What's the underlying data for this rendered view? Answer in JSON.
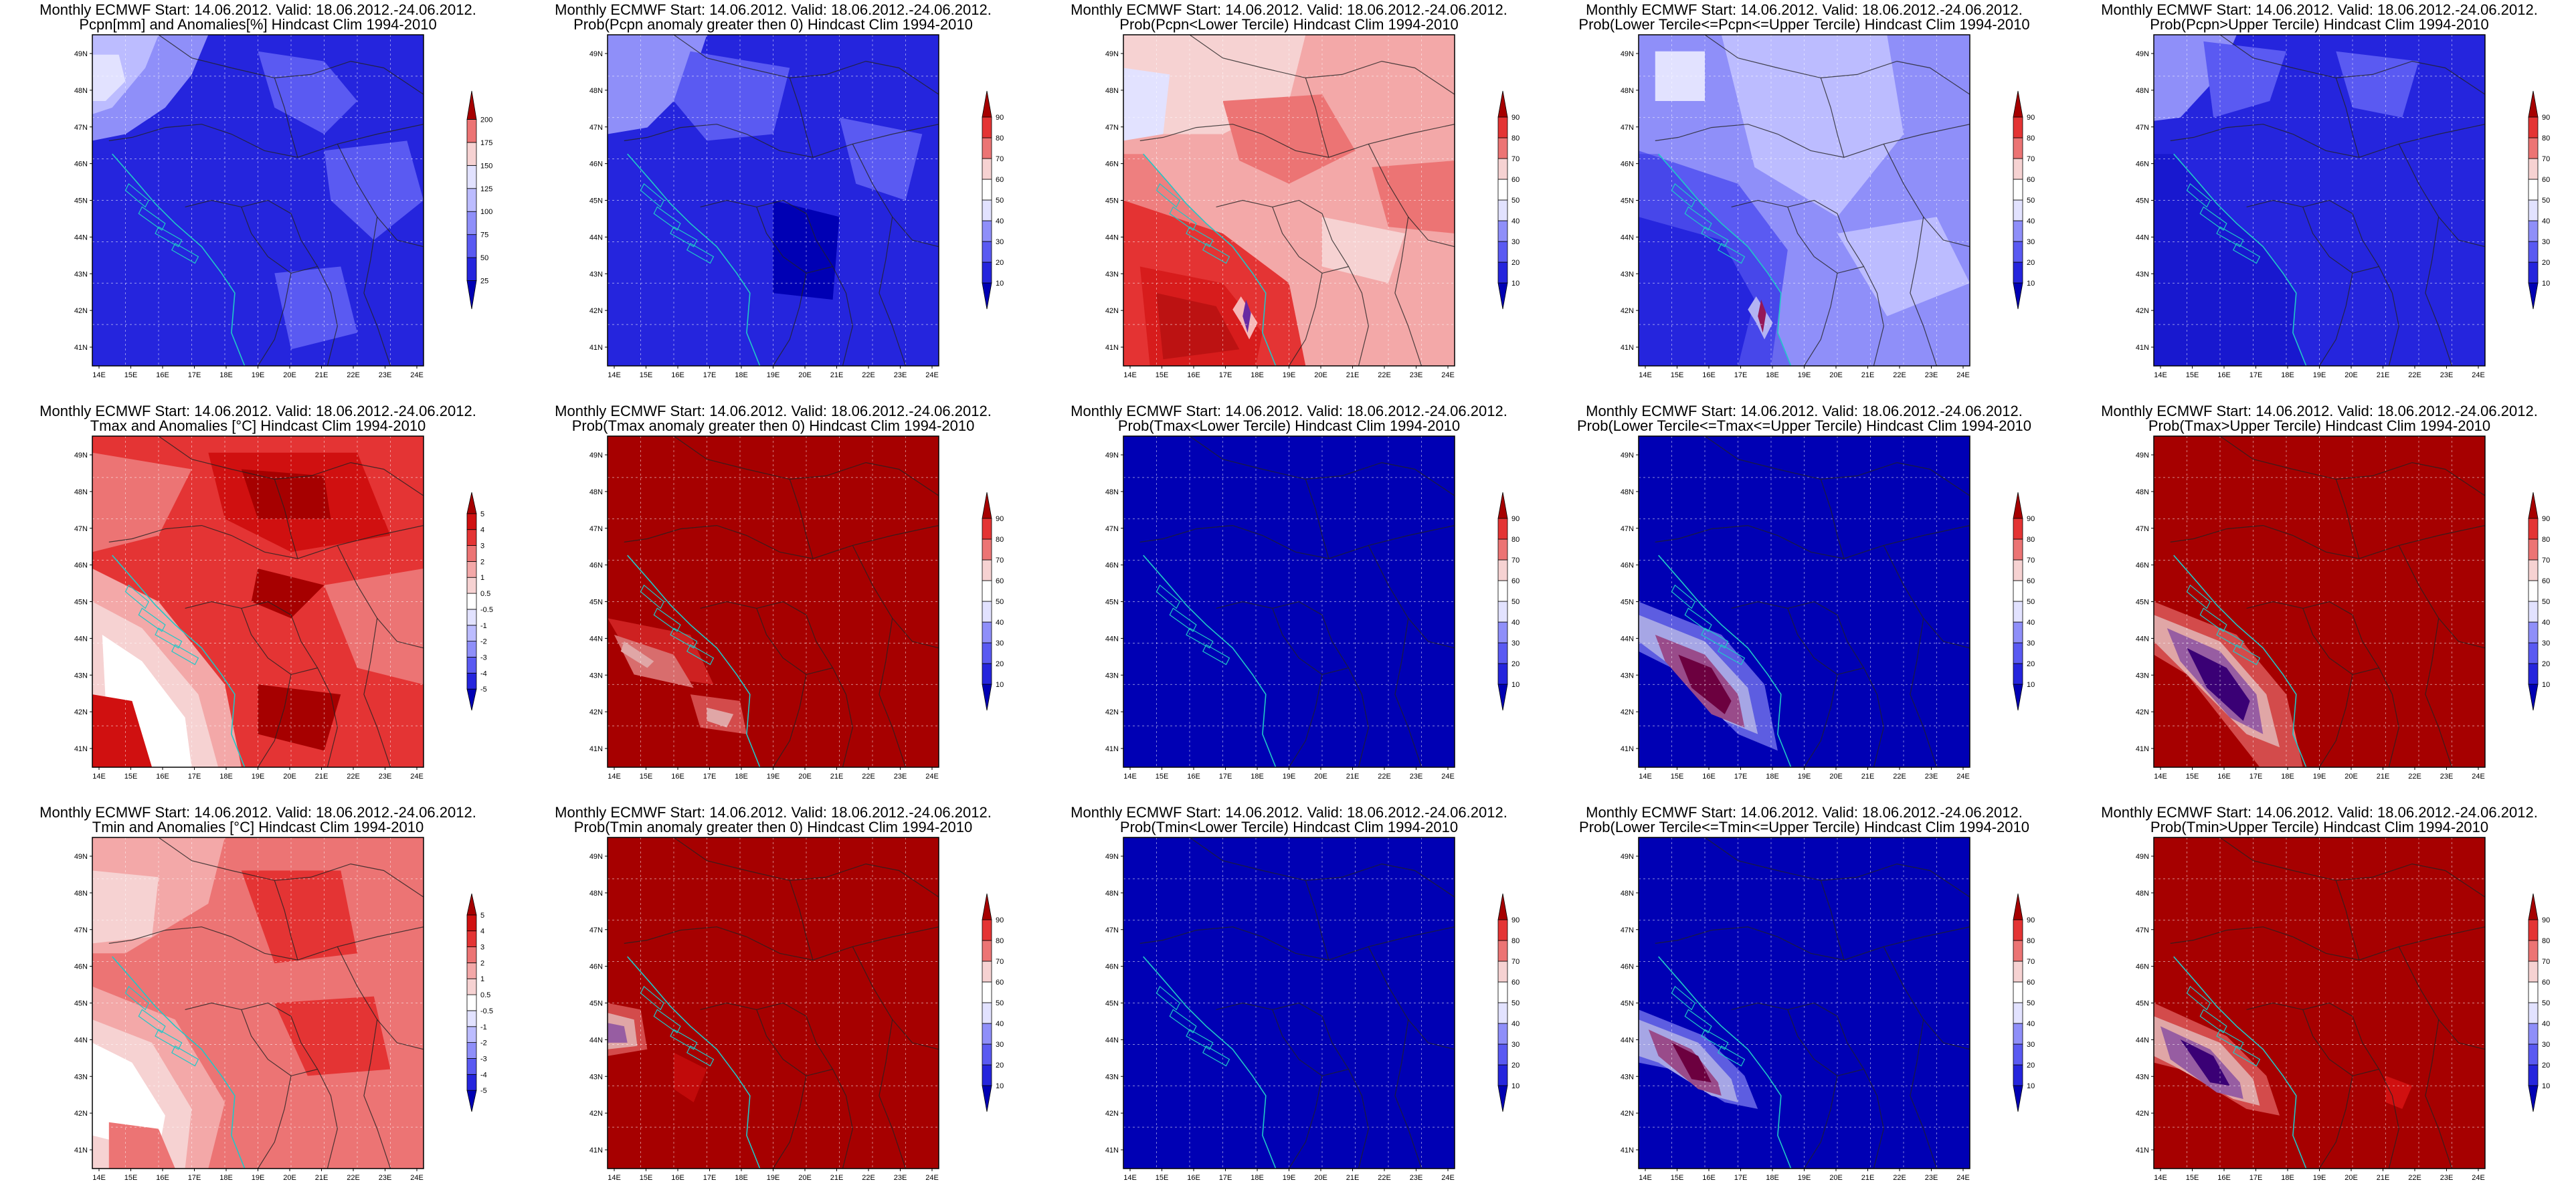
{
  "lon_labels": [
    "14E",
    "15E",
    "16E",
    "17E",
    "18E",
    "19E",
    "20E",
    "21E",
    "22E",
    "23E",
    "24E"
  ],
  "lat_labels": [
    "49N",
    "48N",
    "47N",
    "46N",
    "45N",
    "44N",
    "43N",
    "42N",
    "41N"
  ],
  "colors": {
    "pos": [
      "#f6d2d2",
      "#f3a8a8",
      "#ec7474",
      "#e43434",
      "#d01010",
      "#a60000"
    ],
    "neg": [
      "#e2e2ff",
      "#bcbcff",
      "#8f8ff9",
      "#5a5af2",
      "#2525dd",
      "#0000b4"
    ],
    "ocean_blue": "#0000b4",
    "ocean_red": "#a60000",
    "coast": "#20c8c8",
    "border": "#222222"
  },
  "panels": [
    {
      "id": "pcpn-anomaly",
      "title1": "Monthly ECMWF Start: 14.06.2012. Valid: 18.06.2012.-24.06.2012.",
      "title2": "Pcpn[mm] and Anomalies[%] Hindcast Clim 1994-2010",
      "cbar": [
        "200",
        "175",
        "150",
        "125",
        "100",
        "75",
        "50",
        "25"
      ],
      "scheme": "p1"
    },
    {
      "id": "pcpn-prob-gt0",
      "title1": "Monthly ECMWF Start: 14.06.2012. Valid: 18.06.2012.-24.06.2012.",
      "title2": "Prob(Pcpn anomaly greater then 0) Hindcast Clim 1994-2010",
      "cbar": [
        "90",
        "80",
        "70",
        "60",
        "50",
        "40",
        "30",
        "20",
        "10"
      ],
      "scheme": "p2"
    },
    {
      "id": "pcpn-prob-lower",
      "title1": "Monthly ECMWF Start: 14.06.2012. Valid: 18.06.2012.-24.06.2012.",
      "title2": "Prob(Pcpn<Lower Tercile) Hindcast Clim 1994-2010",
      "cbar": [
        "90",
        "80",
        "70",
        "60",
        "50",
        "40",
        "30",
        "20",
        "10"
      ],
      "scheme": "p3"
    },
    {
      "id": "pcpn-prob-middle",
      "title1": "Monthly ECMWF Start: 14.06.2012. Valid: 18.06.2012.-24.06.2012.",
      "title2": "Prob(Lower Tercile<=Pcpn<=Upper Tercile) Hindcast Clim 1994-2010",
      "cbar": [
        "90",
        "80",
        "70",
        "60",
        "50",
        "40",
        "30",
        "20",
        "10"
      ],
      "scheme": "p4"
    },
    {
      "id": "pcpn-prob-upper",
      "title1": "Monthly ECMWF Start: 14.06.2012. Valid: 18.06.2012.-24.06.2012.",
      "title2": "Prob(Pcpn>Upper Tercile) Hindcast Clim 1994-2010",
      "cbar": [
        "90",
        "80",
        "70",
        "60",
        "50",
        "40",
        "30",
        "20",
        "10"
      ],
      "scheme": "p5"
    },
    {
      "id": "tmax-anomaly",
      "title1": "Monthly ECMWF Start: 14.06.2012. Valid: 18.06.2012.-24.06.2012.",
      "title2": "Tmax and Anomalies [°C] Hindcast Clim 1994-2010",
      "cbar": [
        "5",
        "4",
        "3",
        "2",
        "1",
        "0.5",
        "-0.5",
        "-1",
        "-2",
        "-3",
        "-4",
        "-5"
      ],
      "scheme": "t1"
    },
    {
      "id": "tmax-prob-gt0",
      "title1": "Monthly ECMWF Start: 14.06.2012. Valid: 18.06.2012.-24.06.2012.",
      "title2": "Prob(Tmax anomaly greater then 0) Hindcast Clim 1994-2010",
      "cbar": [
        "90",
        "80",
        "70",
        "60",
        "50",
        "40",
        "30",
        "20",
        "10"
      ],
      "scheme": "t2"
    },
    {
      "id": "tmax-prob-lower",
      "title1": "Monthly ECMWF Start: 14.06.2012. Valid: 18.06.2012.-24.06.2012.",
      "title2": "Prob(Tmax<Lower Tercile) Hindcast Clim 1994-2010",
      "cbar": [
        "90",
        "80",
        "70",
        "60",
        "50",
        "40",
        "30",
        "20",
        "10"
      ],
      "scheme": "t3"
    },
    {
      "id": "tmax-prob-middle",
      "title1": "Monthly ECMWF Start: 14.06.2012. Valid: 18.06.2012.-24.06.2012.",
      "title2": "Prob(Lower Tercile<=Tmax<=Upper Tercile) Hindcast Clim 1994-2010",
      "cbar": [
        "90",
        "80",
        "70",
        "60",
        "50",
        "40",
        "30",
        "20",
        "10"
      ],
      "scheme": "t4"
    },
    {
      "id": "tmax-prob-upper",
      "title1": "Monthly ECMWF Start: 14.06.2012. Valid: 18.06.2012.-24.06.2012.",
      "title2": "Prob(Tmax>Upper Tercile) Hindcast Clim 1994-2010",
      "cbar": [
        "90",
        "80",
        "70",
        "60",
        "50",
        "40",
        "30",
        "20",
        "10"
      ],
      "scheme": "t5"
    },
    {
      "id": "tmin-anomaly",
      "title1": "Monthly ECMWF Start: 14.06.2012. Valid: 18.06.2012.-24.06.2012.",
      "title2": "Tmin and Anomalies [°C] Hindcast Clim 1994-2010",
      "cbar": [
        "5",
        "4",
        "3",
        "2",
        "1",
        "0.5",
        "-0.5",
        "-1",
        "-2",
        "-3",
        "-4",
        "-5"
      ],
      "scheme": "n1"
    },
    {
      "id": "tmin-prob-gt0",
      "title1": "Monthly ECMWF Start: 14.06.2012. Valid: 18.06.2012.-24.06.2012.",
      "title2": "Prob(Tmin anomaly greater then 0) Hindcast Clim 1994-2010",
      "cbar": [
        "90",
        "80",
        "70",
        "60",
        "50",
        "40",
        "30",
        "20",
        "10"
      ],
      "scheme": "n2"
    },
    {
      "id": "tmin-prob-lower",
      "title1": "Monthly ECMWF Start: 14.06.2012. Valid: 18.06.2012.-24.06.2012.",
      "title2": "Prob(Tmin<Lower Tercile) Hindcast Clim 1994-2010",
      "cbar": [
        "90",
        "80",
        "70",
        "60",
        "50",
        "40",
        "30",
        "20",
        "10"
      ],
      "scheme": "n3"
    },
    {
      "id": "tmin-prob-middle",
      "title1": "Monthly ECMWF Start: 14.06.2012. Valid: 18.06.2012.-24.06.2012.",
      "title2": "Prob(Lower Tercile<=Tmin<=Upper Tercile) Hindcast Clim 1994-2010",
      "cbar": [
        "90",
        "80",
        "70",
        "60",
        "50",
        "40",
        "30",
        "20",
        "10"
      ],
      "scheme": "n4"
    },
    {
      "id": "tmin-prob-upper",
      "title1": "Monthly ECMWF Start: 14.06.2012. Valid: 18.06.2012.-24.06.2012.",
      "title2": "Prob(Tmin>Upper Tercile) Hindcast Clim 1994-2010",
      "cbar": [
        "90",
        "80",
        "70",
        "60",
        "50",
        "40",
        "30",
        "20",
        "10"
      ],
      "scheme": "n5"
    }
  ]
}
